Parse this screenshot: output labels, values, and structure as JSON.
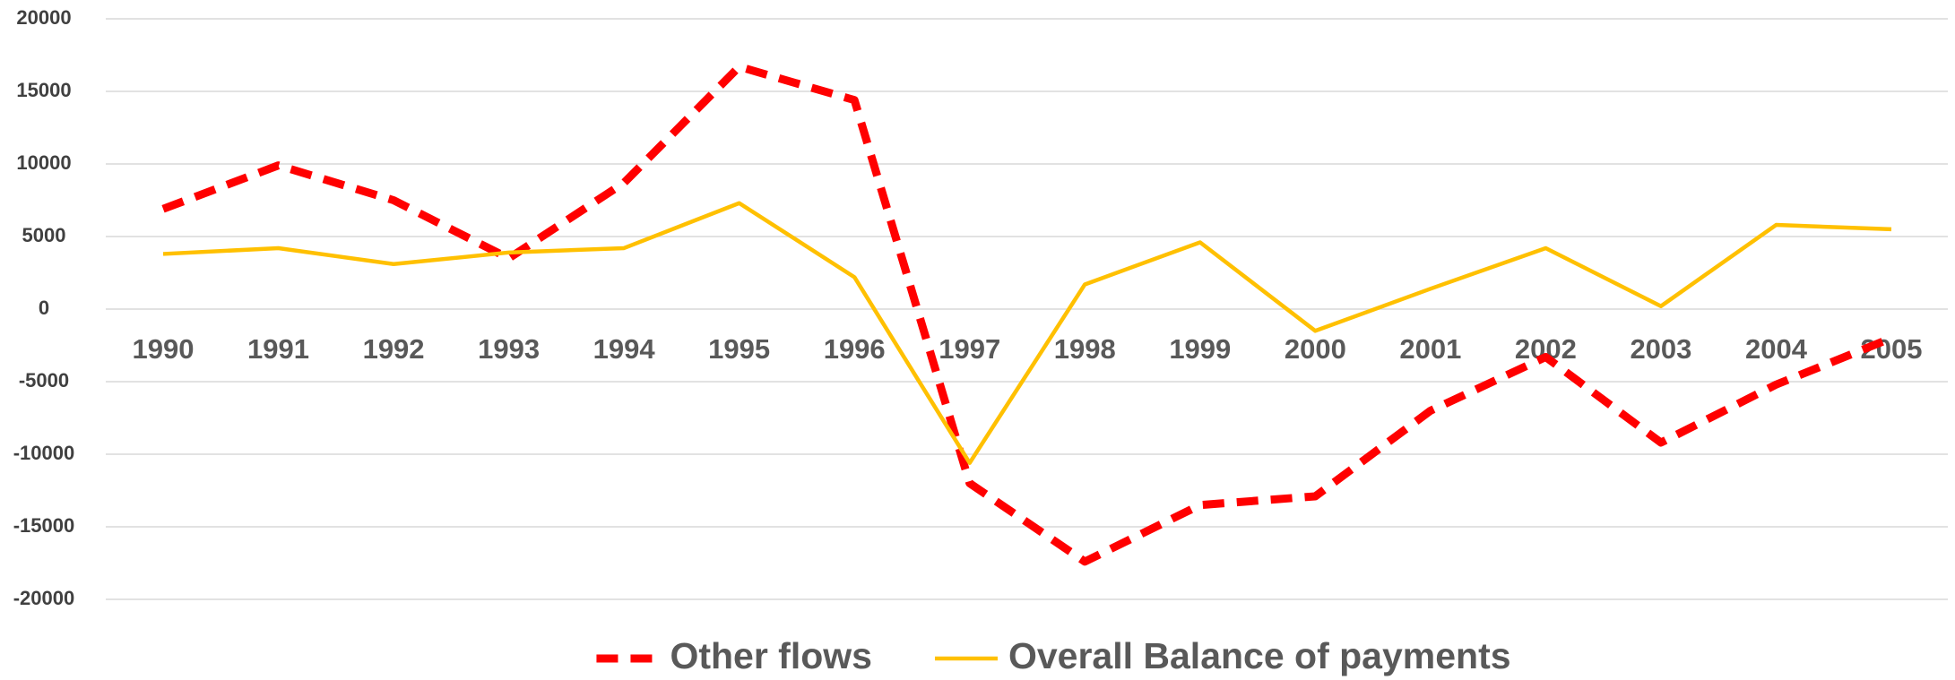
{
  "chart_data": {
    "type": "line",
    "categories": [
      "1990",
      "1991",
      "1992",
      "1993",
      "1994",
      "1995",
      "1996",
      "1997",
      "1998",
      "1999",
      "2000",
      "2001",
      "2002",
      "2003",
      "2004",
      "2005"
    ],
    "series": [
      {
        "name": "Other flows",
        "color": "#ff0000",
        "dashed": true,
        "values": [
          6900,
          9900,
          7500,
          3500,
          8700,
          16700,
          14400,
          -12000,
          -17400,
          -13500,
          -12900,
          -7000,
          -3300,
          -9200,
          -5200,
          -2000
        ]
      },
      {
        "name": "Overall Balance of payments",
        "color": "#ffc000",
        "dashed": false,
        "values": [
          3800,
          4200,
          3100,
          3900,
          4200,
          7300,
          2200,
          -10600,
          1700,
          4600,
          -1500,
          1400,
          4200,
          200,
          5800,
          5500
        ]
      }
    ],
    "ylim": [
      -20000,
      20000
    ],
    "yticks": [
      -20000,
      -15000,
      -10000,
      -5000,
      0,
      5000,
      10000,
      15000,
      20000
    ],
    "grid": true,
    "legend": "bottom"
  }
}
